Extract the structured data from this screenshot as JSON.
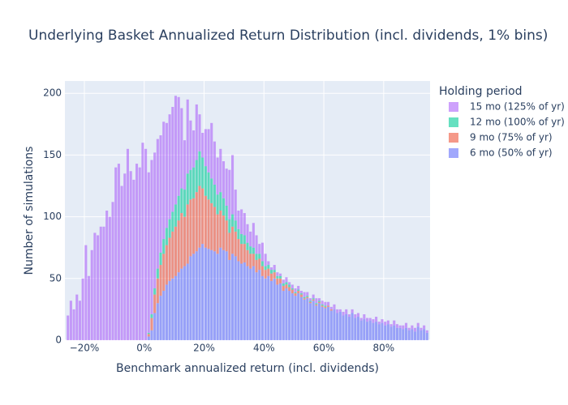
{
  "chart_data": {
    "type": "histogram",
    "title": "Underlying Basket Annualized Return Distribution (incl. dividends, 1% bins)",
    "xlabel": "Benchmark annualized return (incl. dividends)",
    "ylabel": "Number of simulations",
    "legend_title": "Holding period",
    "barmode": "stack",
    "grid": true,
    "bins": [
      -26,
      -25,
      -24,
      -23,
      -22,
      -21,
      -20,
      -19,
      -18,
      -17,
      -16,
      -15,
      -14,
      -13,
      -12,
      -11,
      -10,
      -9,
      -8,
      -7,
      -6,
      -5,
      -4,
      -3,
      -2,
      -1,
      0,
      1,
      2,
      3,
      4,
      5,
      6,
      7,
      8,
      9,
      10,
      11,
      12,
      13,
      14,
      15,
      16,
      17,
      18,
      19,
      20,
      21,
      22,
      23,
      24,
      25,
      26,
      27,
      28,
      29,
      30,
      31,
      32,
      33,
      34,
      35,
      36,
      37,
      38,
      39,
      40,
      41,
      42,
      43,
      44,
      45,
      46,
      47,
      48,
      49,
      50,
      51,
      52,
      53,
      54,
      55,
      56,
      57,
      58,
      59,
      60,
      61,
      62,
      63,
      64,
      65,
      66,
      67,
      68,
      69,
      70,
      71,
      72,
      73,
      74,
      75,
      76,
      77,
      78,
      79,
      80,
      81,
      82,
      83,
      84,
      85,
      86,
      87,
      88,
      89,
      90,
      91,
      92,
      93,
      94,
      95
    ],
    "series": [
      {
        "name": "6 mo (50% of yr)",
        "color": "#636efa",
        "values": [
          0,
          0,
          0,
          0,
          0,
          0,
          0,
          0,
          0,
          0,
          0,
          0,
          0,
          0,
          0,
          0,
          0,
          0,
          0,
          0,
          0,
          0,
          0,
          0,
          0,
          0,
          0,
          3,
          8,
          22,
          30,
          36,
          40,
          45,
          48,
          50,
          52,
          55,
          58,
          60,
          62,
          68,
          70,
          72,
          75,
          78,
          75,
          74,
          73,
          72,
          70,
          75,
          73,
          72,
          65,
          70,
          68,
          64,
          62,
          63,
          60,
          58,
          60,
          55,
          57,
          52,
          50,
          52,
          48,
          50,
          45,
          46,
          40,
          42,
          40,
          38,
          36,
          38,
          35,
          33,
          34,
          30,
          32,
          28,
          30,
          27,
          26,
          27,
          24,
          25,
          22,
          23,
          20,
          21,
          19,
          22,
          18,
          19,
          16,
          17,
          15,
          16,
          14,
          15,
          13,
          14,
          12,
          13,
          11,
          12,
          10,
          10,
          9,
          10,
          8,
          9,
          7,
          11,
          8,
          9,
          6
        ]
      },
      {
        "name": "9 mo (75% of yr)",
        "color": "#ef553b",
        "values": [
          0,
          0,
          0,
          0,
          0,
          0,
          0,
          0,
          0,
          0,
          0,
          0,
          0,
          0,
          0,
          0,
          0,
          0,
          0,
          0,
          0,
          0,
          0,
          0,
          0,
          0,
          0,
          2,
          10,
          15,
          20,
          25,
          30,
          32,
          35,
          38,
          40,
          42,
          45,
          40,
          48,
          46,
          45,
          48,
          50,
          45,
          42,
          40,
          38,
          36,
          32,
          30,
          28,
          25,
          22,
          22,
          20,
          18,
          16,
          15,
          13,
          12,
          10,
          10,
          9,
          8,
          7,
          6,
          6,
          5,
          5,
          4,
          4,
          3,
          3,
          3,
          2,
          2,
          2,
          1,
          1,
          1,
          1,
          1,
          1,
          1,
          1,
          1,
          1,
          0,
          0,
          0,
          0,
          0,
          0,
          0,
          0,
          0,
          0,
          0,
          0,
          0,
          0,
          0,
          0,
          0,
          0,
          0,
          0,
          0,
          0,
          0,
          0,
          0,
          0,
          0,
          0,
          0,
          0,
          0,
          0
        ]
      },
      {
        "name": "12 mo (100% of yr)",
        "color": "#00cc96",
        "values": [
          0,
          0,
          0,
          0,
          0,
          0,
          0,
          0,
          0,
          0,
          0,
          0,
          0,
          0,
          0,
          0,
          0,
          0,
          0,
          0,
          0,
          0,
          0,
          0,
          0,
          0,
          0,
          1,
          3,
          5,
          8,
          10,
          12,
          14,
          15,
          16,
          18,
          20,
          20,
          22,
          25,
          24,
          25,
          26,
          28,
          25,
          24,
          22,
          20,
          18,
          16,
          15,
          14,
          12,
          11,
          10,
          9,
          8,
          8,
          7,
          6,
          6,
          5,
          5,
          4,
          4,
          3,
          3,
          3,
          2,
          2,
          2,
          2,
          2,
          2,
          1,
          1,
          1,
          1,
          1,
          1,
          1,
          1,
          1,
          1,
          1,
          1,
          0,
          0,
          0,
          0,
          0,
          0,
          0,
          0,
          0,
          0,
          0,
          0,
          0,
          0,
          0,
          0,
          0,
          0,
          0,
          0,
          0,
          0,
          0,
          0,
          0,
          0,
          0,
          0,
          0,
          0,
          0,
          0,
          0,
          0
        ]
      },
      {
        "name": "15 mo (125% of yr)",
        "color": "#ab63fa",
        "values": [
          20,
          32,
          25,
          37,
          32,
          50,
          77,
          52,
          73,
          87,
          85,
          92,
          92,
          105,
          100,
          112,
          140,
          143,
          125,
          135,
          155,
          137,
          130,
          143,
          140,
          160,
          155,
          130,
          125,
          110,
          105,
          95,
          95,
          85,
          85,
          85,
          88,
          80,
          65,
          40,
          60,
          40,
          30,
          45,
          30,
          20,
          30,
          35,
          45,
          35,
          30,
          35,
          30,
          30,
          40,
          48,
          25,
          15,
          20,
          18,
          15,
          12,
          20,
          15,
          8,
          15,
          10,
          3,
          2,
          4,
          3,
          2,
          3,
          4,
          2,
          3,
          3,
          3,
          2,
          4,
          3,
          2,
          3,
          4,
          2,
          3,
          3,
          3,
          2,
          4,
          3,
          2,
          3,
          4,
          2,
          3,
          3,
          3,
          2,
          4,
          3,
          2,
          3,
          4,
          2,
          3,
          3,
          3,
          2,
          4,
          3,
          2,
          3,
          4,
          2,
          3,
          3,
          3,
          2,
          3,
          2
        ]
      }
    ],
    "xlim": [
      -26.5,
      95.5
    ],
    "ylim": [
      0,
      210
    ],
    "xticks": [
      {
        "value": -20,
        "label": "−20%"
      },
      {
        "value": 0,
        "label": "0%"
      },
      {
        "value": 20,
        "label": "20%"
      },
      {
        "value": 40,
        "label": "40%"
      },
      {
        "value": 60,
        "label": "60%"
      },
      {
        "value": 80,
        "label": "80%"
      }
    ],
    "yticks": [
      0,
      50,
      100,
      150,
      200
    ]
  }
}
